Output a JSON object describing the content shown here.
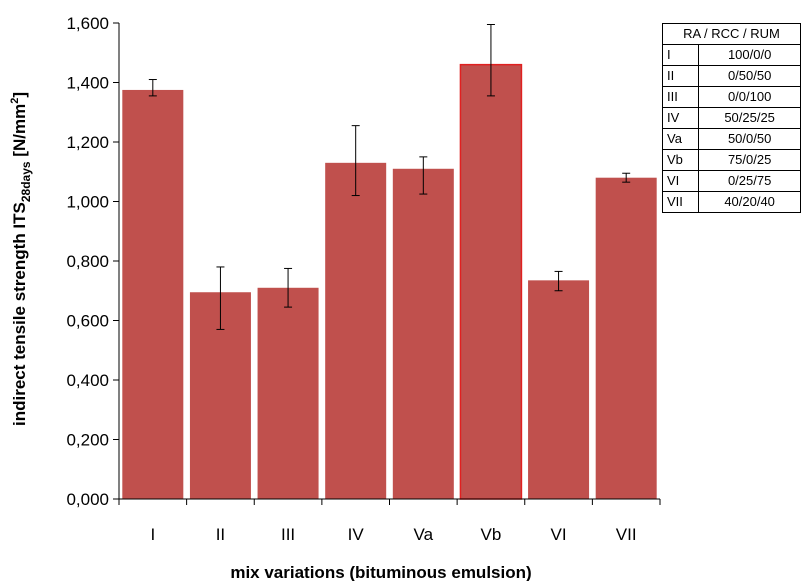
{
  "chart_data": {
    "type": "bar",
    "categories": [
      "I",
      "II",
      "III",
      "IV",
      "Va",
      "Vb",
      "VI",
      "VII"
    ],
    "values": [
      1.375,
      0.695,
      0.71,
      1.13,
      1.11,
      1.46,
      0.735,
      1.08
    ],
    "error_low": [
      1.355,
      0.57,
      0.645,
      1.02,
      1.025,
      1.355,
      0.7,
      1.065
    ],
    "error_high": [
      1.41,
      0.78,
      0.775,
      1.255,
      1.15,
      1.595,
      0.765,
      1.095
    ],
    "yticks": [
      "0,000",
      "0,200",
      "0,400",
      "0,600",
      "0,800",
      "1,000",
      "1,200",
      "1,400",
      "1,600"
    ],
    "ylim": [
      0,
      1.6
    ],
    "title": "",
    "xlabel": "mix variations (bituminous emulsion)",
    "ylabel": {
      "main": "indirect tensile strength ITS",
      "subscript": "28days",
      "unit_open": " [N/mm",
      "superscript": "2",
      "unit_close": "]"
    },
    "grid": false,
    "legend_placement": "top-right",
    "colors": {
      "bar": "#c0504d",
      "bar_highlight_border": "#e02020",
      "axis": "#000000"
    }
  },
  "composition_table": {
    "header": "RA / RCC / RUM",
    "rows": [
      {
        "code": "I",
        "ratio": "100/0/0"
      },
      {
        "code": "II",
        "ratio": "0/50/50"
      },
      {
        "code": "III",
        "ratio": "0/0/100"
      },
      {
        "code": "IV",
        "ratio": "50/25/25"
      },
      {
        "code": "Va",
        "ratio": "50/0/50"
      },
      {
        "code": "Vb",
        "ratio": "75/0/25"
      },
      {
        "code": "VI",
        "ratio": "0/25/75"
      },
      {
        "code": "VII",
        "ratio": "40/20/40"
      }
    ]
  }
}
